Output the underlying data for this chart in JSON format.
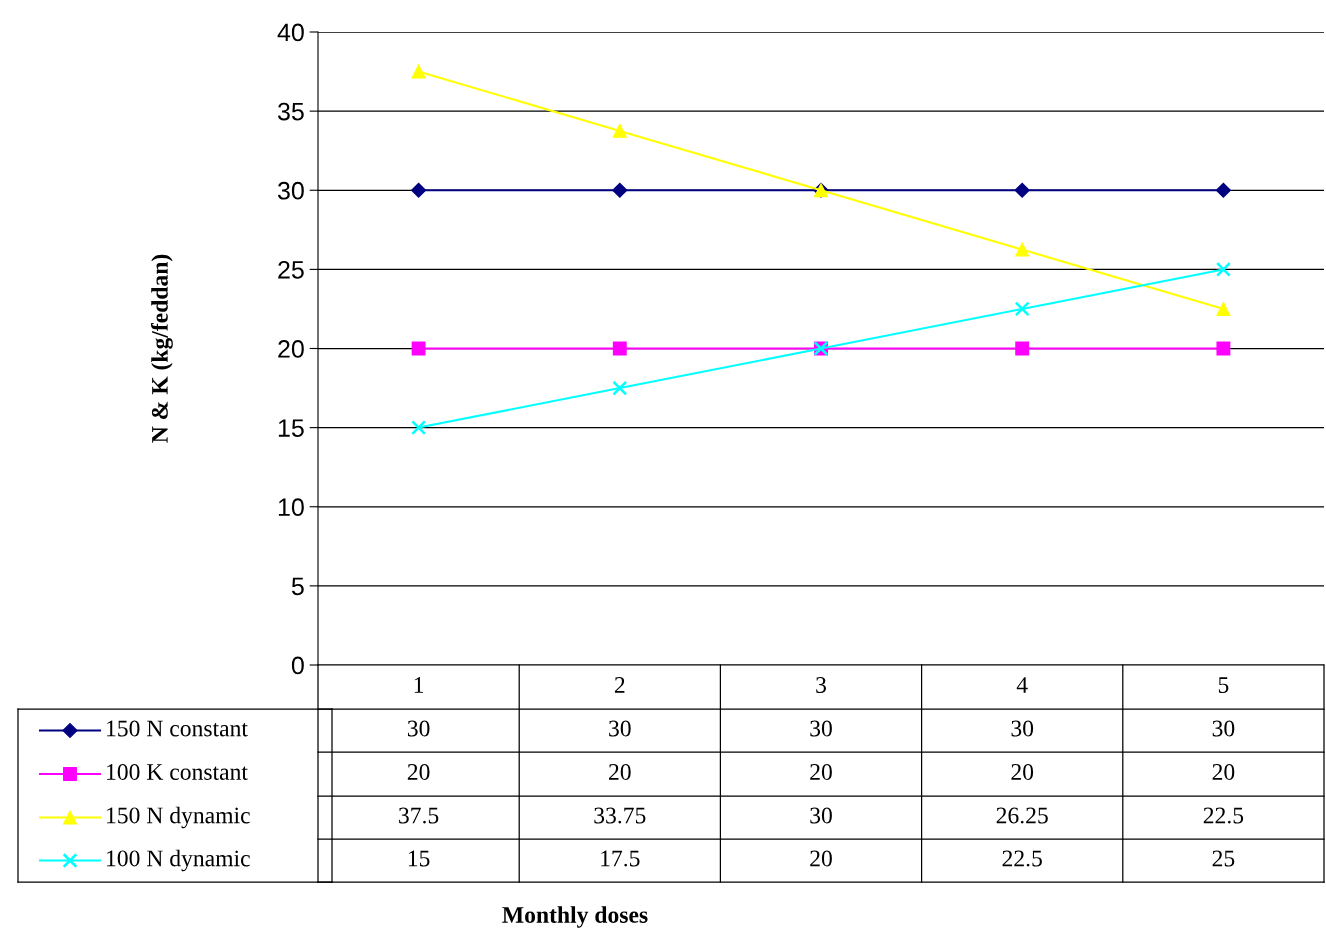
{
  "chart_data": {
    "type": "line",
    "annotations": [
      "Monthly doses"
    ],
    "ylabel": "N & K (kg/feddan)",
    "categories": [
      "1",
      "2",
      "3",
      "4",
      "5"
    ],
    "series": [
      {
        "name": "150 N constant",
        "color": "#000080",
        "marker": "diamond",
        "values": [
          30,
          30,
          30,
          30,
          30
        ]
      },
      {
        "name": "100 K constant",
        "color": "#ff00ff",
        "marker": "square",
        "values": [
          20,
          20,
          20,
          20,
          20
        ]
      },
      {
        "name": "150 N dynamic",
        "color": "#ffff00",
        "marker": "triangle",
        "values": [
          37.5,
          33.75,
          30,
          26.25,
          22.5
        ]
      },
      {
        "name": "100 N dynamic",
        "color": "#00ffff",
        "marker": "cross",
        "values": [
          15,
          17.5,
          20,
          22.5,
          25
        ]
      }
    ],
    "ylim": [
      0,
      40
    ],
    "yticks": [
      0,
      5,
      10,
      15,
      20,
      25,
      30,
      35,
      40
    ],
    "grid": "y",
    "legend": "bottom left",
    "data_labels": true,
    "line_style": "solid"
  }
}
